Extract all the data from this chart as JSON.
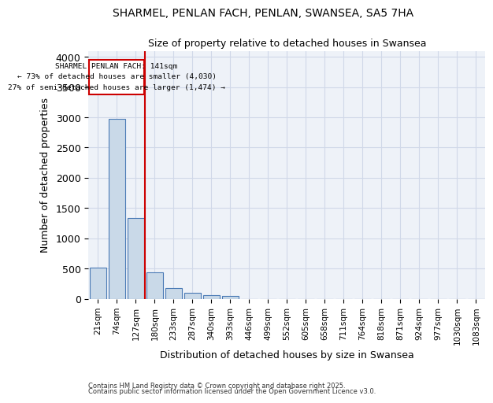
{
  "title_line1": "SHARMEL, PENLAN FACH, PENLAN, SWANSEA, SA5 7HA",
  "title_line2": "Size of property relative to detached houses in Swansea",
  "xlabel": "Distribution of detached houses by size in Swansea",
  "ylabel": "Number of detached properties",
  "categories": [
    "21sqm",
    "74sqm",
    "127sqm",
    "180sqm",
    "233sqm",
    "287sqm",
    "340sqm",
    "393sqm",
    "446sqm",
    "499sqm",
    "552sqm",
    "605sqm",
    "658sqm",
    "711sqm",
    "764sqm",
    "818sqm",
    "871sqm",
    "924sqm",
    "977sqm",
    "1030sqm",
    "1083sqm"
  ],
  "values": [
    510,
    2970,
    1340,
    430,
    180,
    100,
    60,
    50,
    0,
    0,
    0,
    0,
    0,
    0,
    0,
    0,
    0,
    0,
    0,
    0,
    0
  ],
  "bar_color": "#c9d9e8",
  "bar_edge_color": "#4a7ab5",
  "ylim": [
    0,
    4100
  ],
  "yticks": [
    0,
    500,
    1000,
    1500,
    2000,
    2500,
    3000,
    3500,
    4000
  ],
  "vline_position": 2.5,
  "annotation_text_line1": "SHARMEL PENLAN FACH: 141sqm",
  "annotation_text_line2": "← 73% of detached houses are smaller (4,030)",
  "annotation_text_line3": "27% of semi-detached houses are larger (1,474) →",
  "annotation_box_color": "#ffffff",
  "annotation_box_edge_color": "#cc0000",
  "grid_color": "#d0d8e8",
  "bg_color": "#eef2f8",
  "footer_line1": "Contains HM Land Registry data © Crown copyright and database right 2025.",
  "footer_line2": "Contains public sector information licensed under the Open Government Licence v3.0."
}
